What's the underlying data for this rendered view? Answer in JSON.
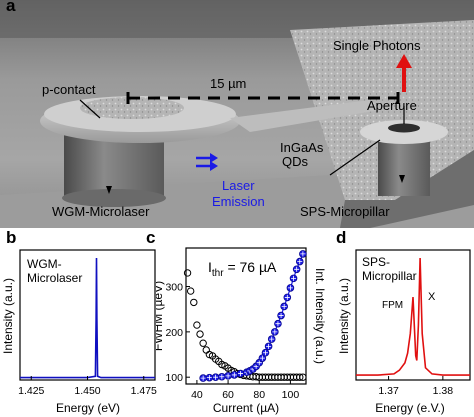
{
  "panel_a": {
    "letter": "a",
    "scale_label": "15 µm",
    "labels": {
      "single_photons": "Single Photons",
      "aperture": "Aperture",
      "p_contact": "p-contact",
      "ingaas_line1": "InGaAs",
      "ingaas_line2": "QDs",
      "laser_line1": "Laser",
      "laser_line2": "Emission",
      "wgm_microlaser": "WGM-Microlaser",
      "sps_micropillar": "SPS-Micropillar"
    },
    "colors": {
      "sem_background": "#8a8a8a",
      "arrow_red": "#e01010",
      "laser_blue": "#1a1ae6"
    }
  },
  "panel_b": {
    "letter": "b",
    "legend_line1": "WGM-",
    "legend_line2": "Microlaser"
  },
  "panel_c": {
    "letter": "c",
    "annotation_prefix": "I",
    "annotation_sub": "thr",
    "annotation_value": " = 76 µA"
  },
  "panel_d": {
    "letter": "d",
    "legend_line1": "SPS-",
    "legend_line2": "Micropillar",
    "peak_fpm": "FPM",
    "peak_x": "X"
  },
  "chart_data": [
    {
      "id": "b",
      "type": "line",
      "xlabel": "Energy (eV)",
      "ylabel": "Intensity (a.u.)",
      "xlim": [
        1.42,
        1.48
      ],
      "ylim": [
        0,
        1
      ],
      "xticks": [
        "1.425",
        "1.450",
        "1.475"
      ],
      "xtick_values": [
        1.425,
        1.45,
        1.475
      ],
      "series": [
        {
          "color": "#1010c0",
          "x": [
            1.42,
            1.43,
            1.44,
            1.45,
            1.4535,
            1.4538,
            1.454,
            1.4542,
            1.4545,
            1.456,
            1.465,
            1.48
          ],
          "y": [
            0.02,
            0.02,
            0.02,
            0.02,
            0.03,
            0.5,
            1.0,
            0.5,
            0.03,
            0.02,
            0.02,
            0.02
          ]
        }
      ]
    },
    {
      "id": "c",
      "type": "scatter",
      "xlabel": "Current (µA)",
      "ylabel": "FWHM (µeV)",
      "ylabel_right": "Int. Intensity (a.u.)",
      "xlim": [
        33,
        110
      ],
      "ylim": [
        85,
        385
      ],
      "xticks": [
        "40",
        "60",
        "80",
        "100"
      ],
      "xtick_values": [
        40,
        60,
        80,
        100
      ],
      "yticks": [
        "100",
        "200",
        "300"
      ],
      "ytick_values": [
        100,
        200,
        300
      ],
      "series": [
        {
          "style": "open-circles",
          "color": "#000000",
          "x": [
            34,
            36,
            38,
            40,
            42,
            44,
            46,
            48,
            50,
            52,
            54,
            56,
            58,
            60,
            62,
            64,
            66,
            68,
            70,
            72,
            74,
            76,
            78,
            80,
            82,
            84,
            86,
            88,
            90,
            92,
            94,
            96,
            98,
            100,
            102,
            104,
            106,
            108
          ],
          "y": [
            330,
            290,
            265,
            215,
            195,
            175,
            160,
            150,
            147,
            140,
            135,
            128,
            125,
            120,
            115,
            112,
            108,
            106,
            104,
            103,
            102,
            101,
            101,
            100,
            100,
            100,
            100,
            100,
            100,
            100,
            100,
            100,
            100,
            100,
            100,
            100,
            100,
            100
          ]
        },
        {
          "style": "blue-stars-line",
          "color": "#1a1ae6",
          "x": [
            44,
            48,
            52,
            56,
            60,
            64,
            68,
            72,
            74,
            76,
            78,
            80,
            82,
            84,
            86,
            88,
            90,
            92,
            94,
            96,
            98,
            100,
            102,
            104,
            106,
            108
          ],
          "y": [
            98,
            99,
            100,
            101,
            103,
            105,
            108,
            111,
            114,
            118,
            124,
            132,
            142,
            154,
            168,
            184,
            200,
            218,
            236,
            256,
            276,
            297,
            318,
            338,
            355,
            372
          ]
        }
      ]
    },
    {
      "id": "d",
      "type": "line",
      "xlabel": "Energy (e.V.)",
      "ylabel": "Intensity (a.u.)",
      "xlim": [
        1.364,
        1.385
      ],
      "ylim": [
        0,
        1
      ],
      "xticks": [
        "1.37",
        "1.38"
      ],
      "xtick_values": [
        1.37,
        1.38
      ],
      "series": [
        {
          "color": "#e01010",
          "x": [
            1.364,
            1.368,
            1.371,
            1.372,
            1.373,
            1.3735,
            1.374,
            1.3745,
            1.375,
            1.3752,
            1.3755,
            1.3758,
            1.3762,
            1.3768,
            1.378,
            1.38,
            1.385
          ],
          "y": [
            0.04,
            0.04,
            0.05,
            0.08,
            0.14,
            0.22,
            0.38,
            0.68,
            0.2,
            0.16,
            0.45,
            1.0,
            0.38,
            0.1,
            0.05,
            0.04,
            0.04
          ]
        }
      ]
    }
  ]
}
